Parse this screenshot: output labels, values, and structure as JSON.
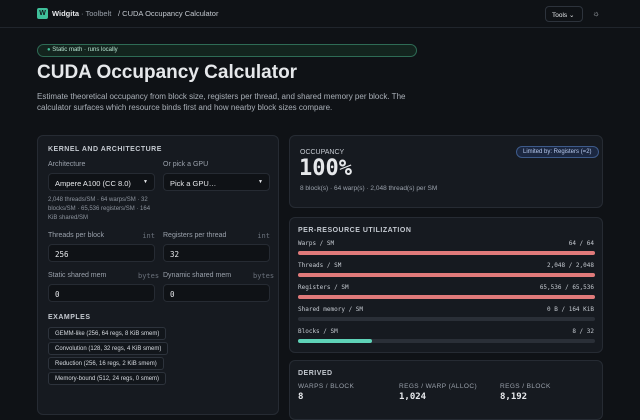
{
  "header": {
    "logo": "W",
    "brand": "Widgita",
    "section": "· Toolbelt",
    "crumb": "/ CUDA Occupancy Calculator",
    "tools": "Tools"
  },
  "hero": {
    "badge": "Static math · runs locally",
    "title": "CUDA Occupancy Calculator",
    "description": "Estimate theoretical occupancy from block size, registers per thread, and shared memory per block. The calculator surfaces which resource binds first and how nearby block sizes compare."
  },
  "kernel": {
    "title": "KERNEL AND ARCHITECTURE",
    "arch_label": "Architecture",
    "arch_value": "Ampere A100 (CC 8.0)",
    "gpu_label": "Or pick a GPU",
    "gpu_value": "Pick a GPU…",
    "arch_info": "2,048 threads/SM · 64 warps/SM · 32 blocks/SM · 65,536 registers/SM · 164 KiB shared/SM",
    "fields": [
      {
        "label": "Threads per block",
        "hint": "int",
        "value": "256"
      },
      {
        "label": "Registers per thread",
        "hint": "int",
        "value": "32"
      },
      {
        "label": "Static shared mem",
        "hint": "bytes",
        "value": "0"
      },
      {
        "label": "Dynamic shared mem",
        "hint": "bytes",
        "value": "0"
      }
    ],
    "examples_title": "EXAMPLES",
    "examples": [
      "GEMM-like (256, 64 regs, 8 KiB smem)",
      "Convolution (128, 32 regs, 4 KiB smem)",
      "Reduction (256, 16 regs, 2 KiB smem)",
      "Memory-bound (512, 24 regs, 0 smem)"
    ]
  },
  "occupancy": {
    "title": "OCCUPANCY",
    "limit": "Limited by: Registers (=2)",
    "value": "100%",
    "summary": "8 block(s) · 64 warp(s) · 2,048 thread(s) per SM"
  },
  "utilization": {
    "title": "PER-RESOURCE UTILIZATION",
    "rows": [
      {
        "name": "Warps / SM",
        "label": "64 / 64",
        "used": 64,
        "max": 64,
        "color": "#e07a7a"
      },
      {
        "name": "Threads / SM",
        "label": "2,048 / 2,048",
        "used": 2048,
        "max": 2048,
        "color": "#e07a7a"
      },
      {
        "name": "Registers / SM",
        "label": "65,536 / 65,536",
        "used": 65536,
        "max": 65536,
        "color": "#e07a7a"
      },
      {
        "name": "Shared memory / SM",
        "label": "0 B / 164 KiB",
        "used": 0,
        "max": 164,
        "color": "#e07a7a"
      },
      {
        "name": "Blocks / SM",
        "label": "8 / 32",
        "used": 8,
        "max": 32,
        "color": "#5fd3b8"
      }
    ]
  },
  "derived": {
    "title": "DERIVED",
    "items": [
      {
        "label": "WARPS / BLOCK",
        "value": "8"
      },
      {
        "label": "REGS / WARP (ALLOC)",
        "value": "1,024"
      },
      {
        "label": "REGS / BLOCK",
        "value": "8,192"
      }
    ]
  }
}
